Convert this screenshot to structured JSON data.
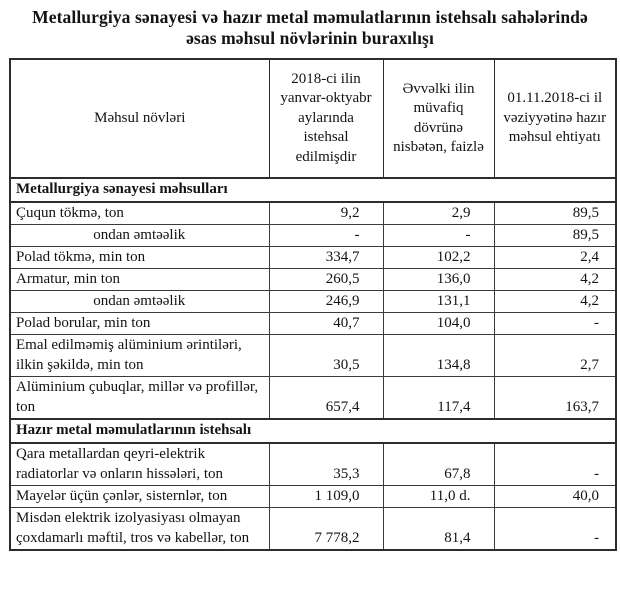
{
  "title": "Metallurgiya sənayesi və hazır metal məmulatlarının istehsalı sahələrində əsas məhsul növlərinin buraxılışı",
  "table": {
    "columns": [
      "Məhsul növləri",
      "2018-ci ilin yanvar-oktyabr aylarında istehsal edilmişdir",
      "Əvvəlki ilin müvafiq dövrünə nisbətən, faizlə",
      "01.11.2018-ci il vəziyyətinə hazır məhsul ehtiyatı"
    ],
    "sections": [
      {
        "header": "Metallurgiya sənayesi məhsulları",
        "rows": [
          {
            "label": "Çuqun tökmə, ton",
            "indent": false,
            "produced": "9,2",
            "percent": "2,9",
            "stock": "89,5"
          },
          {
            "label": "ondan əmtəəlik",
            "indent": true,
            "produced": "-",
            "percent": "-",
            "stock": "89,5"
          },
          {
            "label": "Polad tökmə, min ton",
            "indent": false,
            "produced": "334,7",
            "percent": "102,2",
            "stock": "2,4"
          },
          {
            "label": "Armatur, min ton",
            "indent": false,
            "produced": "260,5",
            "percent": "136,0",
            "stock": "4,2"
          },
          {
            "label": "ondan əmtəəlik",
            "indent": true,
            "produced": "246,9",
            "percent": "131,1",
            "stock": "4,2"
          },
          {
            "label": "Polad borular,  min ton",
            "indent": false,
            "produced": "40,7",
            "percent": "104,0",
            "stock": "-"
          },
          {
            "label": "Emal edilməmiş alüminium ərintiləri, ilkin şəkildə, min ton",
            "indent": false,
            "produced": "30,5",
            "percent": "134,8",
            "stock": "2,7"
          },
          {
            "label": "Alüminium çubuqlar, millər və profillər, ton",
            "indent": false,
            "produced": "657,4",
            "percent": "117,4",
            "stock": "163,7"
          }
        ]
      },
      {
        "header": "Hazır metal məmulatlarının istehsalı",
        "rows": [
          {
            "label": "Qara metallardan qeyri-elektrik radiatorlar və onların hissələri, ton",
            "indent": false,
            "produced": "35,3",
            "percent": "67,8",
            "stock": "-"
          },
          {
            "label": "Mayelər üçün çənlər, sisternlər, ton",
            "indent": false,
            "produced": "1 109,0",
            "percent": "11,0 d.",
            "stock": "40,0"
          },
          {
            "label": "Misdən elektrik izolyasiyası olmayan çoxdamarlı məftil, tros və kabellər, ton",
            "indent": false,
            "produced": "7 778,2",
            "percent": "81,4",
            "stock": "-"
          }
        ]
      }
    ]
  }
}
